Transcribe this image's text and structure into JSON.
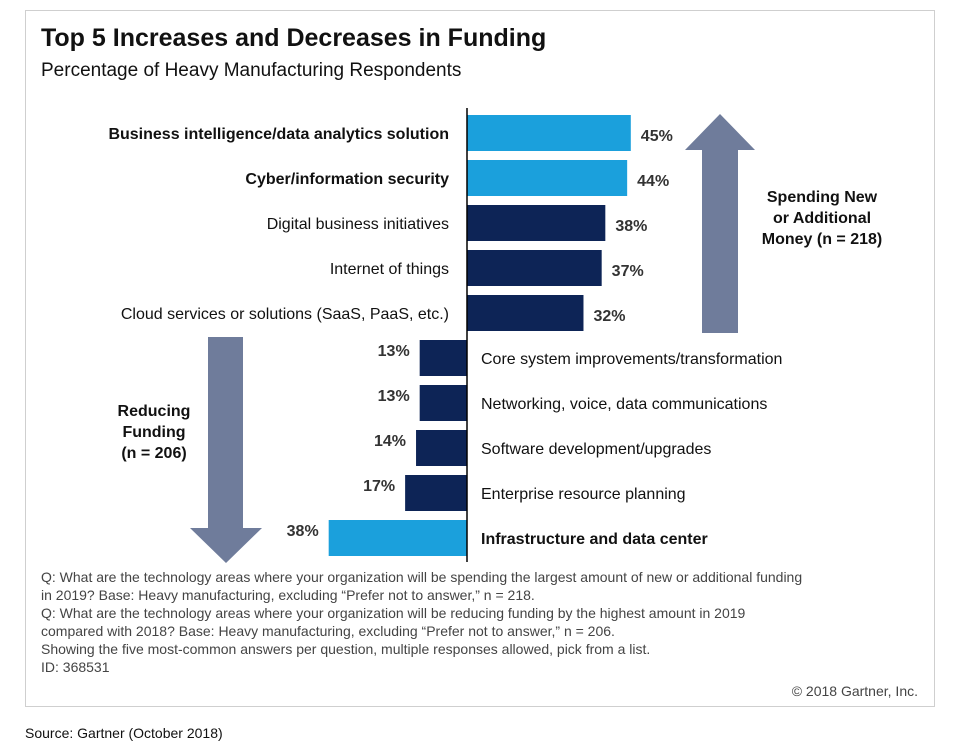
{
  "title": "Top 5 Increases and Decreases in Funding",
  "subtitle": "Percentage of Heavy Manufacturing Respondents",
  "chart_data": {
    "type": "bar",
    "title": "Top 5 Increases and Decreases in Funding",
    "subtitle": "Percentage of Heavy Manufacturing Respondents",
    "increase": {
      "label_lines": [
        "Spending New",
        "or Additional",
        "Money (n = 218)"
      ],
      "categories": [
        "Business intelligence/data analytics solution",
        "Cyber/information security",
        "Digital business initiatives",
        "Internet of things",
        "Cloud services or solutions (SaaS, PaaS, etc.)"
      ],
      "values": [
        45,
        44,
        38,
        37,
        32
      ],
      "value_labels": [
        "45%",
        "44%",
        "38%",
        "37%",
        "32%"
      ],
      "highlight": [
        true,
        true,
        false,
        false,
        false
      ]
    },
    "decrease": {
      "label_lines": [
        "Reducing",
        "Funding",
        "(n = 206)"
      ],
      "categories": [
        "Core system improvements/transformation",
        "Networking, voice, data communications",
        "Software development/upgrades",
        "Enterprise resource planning",
        "Infrastructure and data center"
      ],
      "values": [
        13,
        13,
        14,
        17,
        38
      ],
      "value_labels": [
        "13%",
        "13%",
        "14%",
        "17%",
        "38%"
      ],
      "highlight": [
        false,
        false,
        false,
        false,
        true
      ]
    },
    "colors": {
      "highlight": "#1ba0dc",
      "normal": "#0d2456",
      "arrow": "#6f7c9b",
      "axis": "#000000"
    }
  },
  "notes": [
    "Q: What are the technology areas where your organization will be spending the largest amount of new or additional funding in 2019? Base: Heavy manufacturing, excluding “Prefer not to answer,”  n = 218.",
    "Q: What are the technology areas where your organization will be reducing funding by the highest amount in 2019 compared with 2018? Base: Heavy manufacturing, excluding “Prefer not to answer,”  n = 206.",
    "Showing the five most-common answers per question, multiple responses allowed, pick from a list.",
    "ID: 368531"
  ],
  "copyright": "© 2018 Gartner, Inc.",
  "source": "Source: Gartner (October 2018)"
}
